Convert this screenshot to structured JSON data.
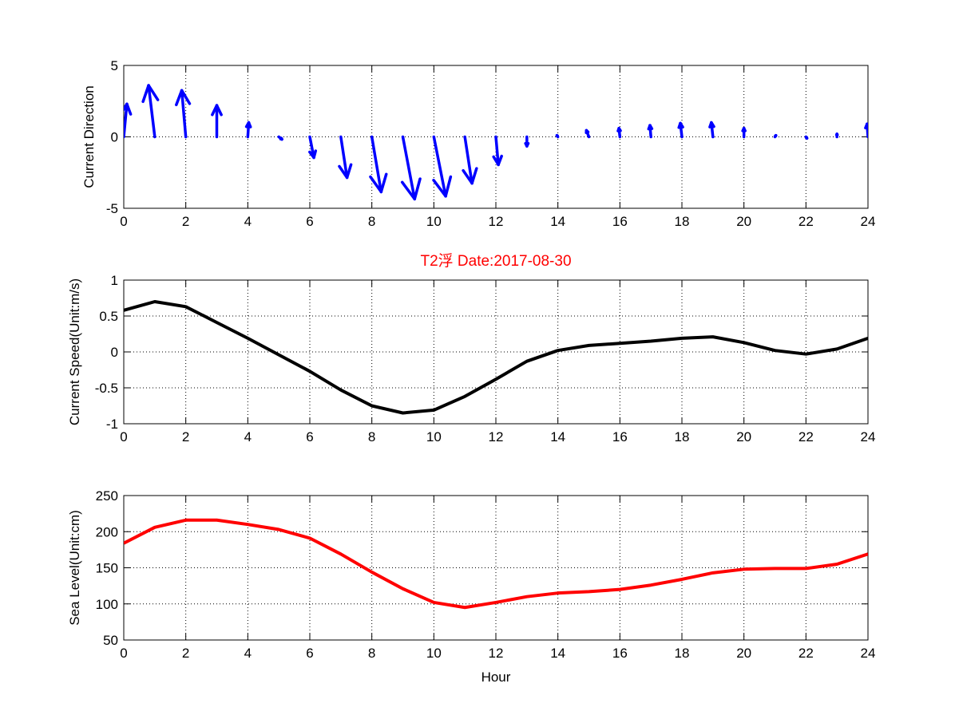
{
  "title": "T2浮    Date:2017-08-30",
  "colors": {
    "direction": "#0000ff",
    "speed": "#000000",
    "sea_level": "#ff0000",
    "title": "#ff0000"
  },
  "chart_data": [
    {
      "type": "quiver",
      "ylabel": "Current Direction",
      "xlabel": "",
      "xlim": [
        0,
        24
      ],
      "ylim": [
        -5,
        5
      ],
      "xticks": [
        "0",
        "2",
        "4",
        "6",
        "8",
        "10",
        "12",
        "14",
        "16",
        "18",
        "20",
        "22",
        "24"
      ],
      "yticks": [
        "-5",
        "0",
        "5"
      ],
      "ytick_values": [
        -5,
        0,
        5
      ],
      "grid": true,
      "x": [
        0,
        1,
        2,
        3,
        4,
        5,
        6,
        7,
        8,
        9,
        10,
        11,
        12,
        13,
        14,
        15,
        16,
        17,
        18,
        19,
        20,
        21,
        22,
        23,
        24
      ],
      "u_hours": [
        0.1,
        -0.2,
        -0.13,
        0,
        0.03,
        0.1,
        0.13,
        0.2,
        0.3,
        0.38,
        0.38,
        0.23,
        0.08,
        0,
        -0.03,
        -0.08,
        -0.03,
        -0.03,
        -0.05,
        -0.05,
        0,
        0.03,
        0.03,
        0,
        -0.03
      ],
      "v": [
        2.3,
        3.6,
        3.25,
        2.2,
        1.0,
        -0.17,
        -1.45,
        -2.85,
        -3.85,
        -4.35,
        -4.15,
        -3.25,
        -1.95,
        -0.65,
        0.1,
        0.45,
        0.6,
        0.8,
        0.95,
        1.0,
        0.6,
        0.1,
        -0.1,
        0.2,
        0.9
      ]
    },
    {
      "type": "line",
      "ylabel": "Current Speed(Unit:m/s)",
      "xlabel": "",
      "xlim": [
        0,
        24
      ],
      "ylim": [
        -1,
        1
      ],
      "xticks": [
        "0",
        "2",
        "4",
        "6",
        "8",
        "10",
        "12",
        "14",
        "16",
        "18",
        "20",
        "22",
        "24"
      ],
      "yticks": [
        "-1",
        "-0.5",
        "0",
        "0.5",
        "1"
      ],
      "ytick_values": [
        -1,
        -0.5,
        0,
        0.5,
        1
      ],
      "grid": true,
      "x": [
        0,
        1,
        2,
        3,
        4,
        5,
        6,
        7,
        8,
        9,
        10,
        11,
        12,
        13,
        14,
        15,
        16,
        17,
        18,
        19,
        20,
        21,
        22,
        23,
        24
      ],
      "y": [
        0.58,
        0.7,
        0.63,
        0.41,
        0.19,
        -0.04,
        -0.27,
        -0.53,
        -0.75,
        -0.85,
        -0.81,
        -0.62,
        -0.38,
        -0.13,
        0.02,
        0.09,
        0.12,
        0.15,
        0.19,
        0.21,
        0.13,
        0.02,
        -0.03,
        0.04,
        0.19
      ]
    },
    {
      "type": "line",
      "ylabel": "Sea Level(Unit:cm)",
      "xlabel": "Hour",
      "xlim": [
        0,
        24
      ],
      "ylim": [
        50,
        250
      ],
      "xticks": [
        "0",
        "2",
        "4",
        "6",
        "8",
        "10",
        "12",
        "14",
        "16",
        "18",
        "20",
        "22",
        "24"
      ],
      "yticks": [
        "50",
        "100",
        "150",
        "200",
        "250"
      ],
      "ytick_values": [
        50,
        100,
        150,
        200,
        250
      ],
      "grid": true,
      "x": [
        0,
        1,
        2,
        3,
        4,
        5,
        6,
        7,
        8,
        9,
        10,
        11,
        12,
        13,
        14,
        15,
        16,
        17,
        18,
        19,
        20,
        21,
        22,
        23,
        24
      ],
      "y": [
        184,
        206,
        216,
        216,
        210,
        203,
        191,
        169,
        144,
        121,
        102,
        95,
        102,
        110,
        115,
        117,
        120,
        126,
        134,
        143,
        148,
        149,
        149,
        155,
        169
      ]
    }
  ]
}
